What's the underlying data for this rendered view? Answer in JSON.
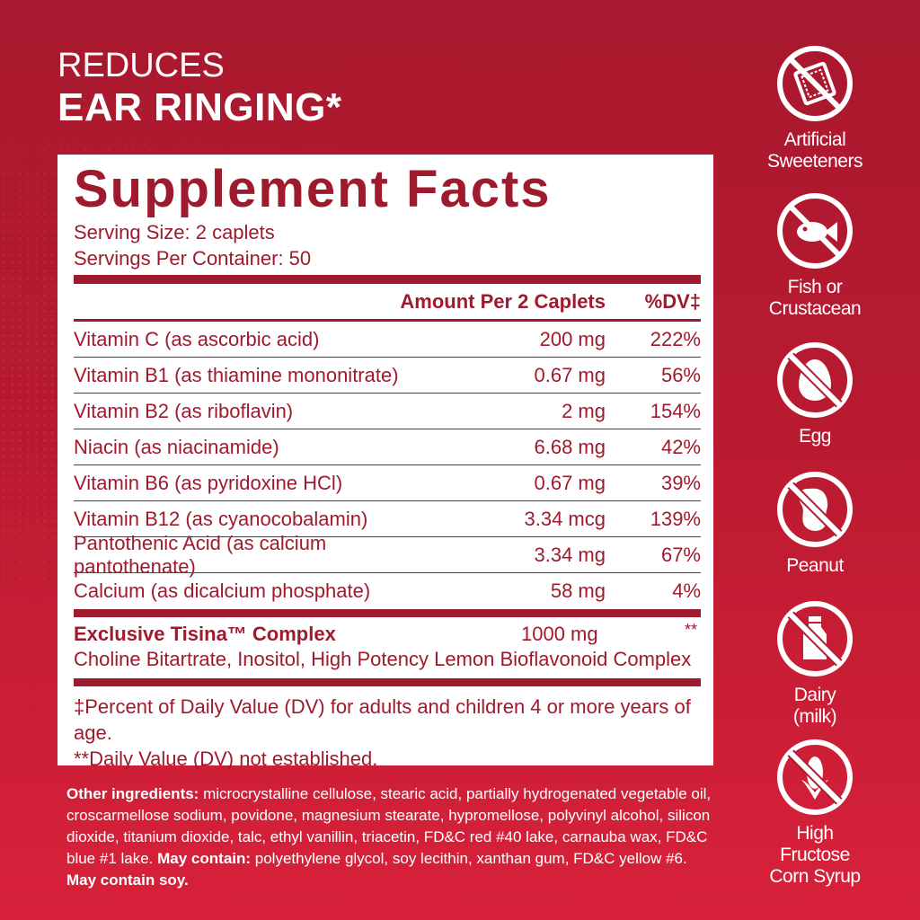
{
  "headline": {
    "line1": "REDUCES",
    "line2": "EAR RINGING*"
  },
  "facts": {
    "title": "Supplement Facts",
    "serving_size": "Serving Size: 2 caplets",
    "servings_per_container": "Servings Per Container: 50",
    "header_amount": "Amount Per 2 Caplets",
    "header_dv": "%DV‡",
    "rows": [
      {
        "name": "Vitamin C (as ascorbic acid)",
        "amount": "200 mg",
        "dv": "222%"
      },
      {
        "name": "Vitamin B1 (as thiamine mononitrate)",
        "amount": "0.67 mg",
        "dv": "56%"
      },
      {
        "name": "Vitamin B2 (as riboflavin)",
        "amount": "2 mg",
        "dv": "154%"
      },
      {
        "name": "Niacin (as niacinamide)",
        "amount": "6.68 mg",
        "dv": "42%"
      },
      {
        "name": "Vitamin B6 (as pyridoxine HCl)",
        "amount": "0.67 mg",
        "dv": "39%"
      },
      {
        "name": "Vitamin B12 (as cyanocobalamin)",
        "amount": "3.34 mcg",
        "dv": "139%"
      },
      {
        "name": "Pantothenic Acid (as calcium pantothenate)",
        "amount": "3.34 mg",
        "dv": "67%"
      },
      {
        "name": "Calcium (as dicalcium phosphate)",
        "amount": "58 mg",
        "dv": "4%"
      }
    ],
    "complex": {
      "name": "Exclusive Tisina™ Complex",
      "amount": "1000 mg",
      "dv": "**",
      "desc": "Choline Bitartrate, Inositol, High Potency Lemon Bioflavonoid Complex"
    },
    "footnote1": "‡Percent of Daily Value (DV) for adults and children 4 or more years of age.",
    "footnote2": "**Daily Value (DV) not established."
  },
  "other": {
    "label1": "Other ingredients:",
    "text1": " microcrystalline cellulose, stearic acid, partially hydrogenated vegetable oil, croscarmellose sodium, povidone, magnesium stearate, hypromellose, polyvinyl alcohol, silicon dioxide, titanium dioxide, talc, ethyl vanillin, triacetin, FD&C red #40 lake, carnauba wax, FD&C blue #1 lake. ",
    "label2": "May contain:",
    "text2": " polyethylene glycol, soy lecithin, xanthan gum, FD&C yellow #6.",
    "label3": "May contain soy."
  },
  "badges": [
    {
      "icon": "sweetener-packet-icon",
      "line1": "Artificial",
      "line2": "Sweeteners"
    },
    {
      "icon": "fish-icon",
      "line1": "Fish or",
      "line2": "Crustacean"
    },
    {
      "icon": "egg-icon",
      "line1": "Egg",
      "line2": ""
    },
    {
      "icon": "peanut-icon",
      "line1": "Peanut",
      "line2": ""
    },
    {
      "icon": "milk-bottle-icon",
      "line1": "Dairy",
      "line2": "(milk)"
    },
    {
      "icon": "corn-icon",
      "line1": "High Fructose",
      "line2": "Corn Syrup"
    }
  ],
  "colors": {
    "brand_red": "#9e1a2c",
    "background": "#b81a30"
  }
}
